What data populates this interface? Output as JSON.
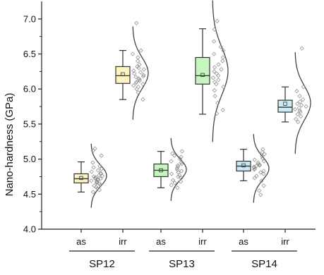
{
  "chart_data": {
    "type": "box",
    "title": "",
    "xlabel": "",
    "ylabel": "Nano-hardness (GPa)",
    "ylim": [
      4.0,
      7.25
    ],
    "yticks": [
      "4.0",
      "4.5",
      "5.0",
      "5.5",
      "6.0",
      "6.5",
      "7.0"
    ],
    "grid": false,
    "legend": "none",
    "groups": [
      {
        "label": "SP12",
        "conditions": [
          "as",
          "irr"
        ]
      },
      {
        "label": "SP13",
        "conditions": [
          "as",
          "irr"
        ]
      },
      {
        "label": "SP14",
        "conditions": [
          "as",
          "irr"
        ]
      }
    ],
    "series": [
      {
        "group": "SP12",
        "condition": "as",
        "color": "#fdf4c0",
        "whisker_low": 4.53,
        "q1": 4.66,
        "median": 4.72,
        "q3": 4.79,
        "whisker_high": 4.96,
        "mean": 4.73,
        "points": [
          4.53,
          4.56,
          4.58,
          4.6,
          4.62,
          4.63,
          4.65,
          4.66,
          4.67,
          4.68,
          4.69,
          4.7,
          4.71,
          4.72,
          4.72,
          4.73,
          4.74,
          4.75,
          4.76,
          4.77,
          4.79,
          4.8,
          4.82,
          4.84,
          4.86,
          4.88,
          4.9,
          4.95,
          5.05,
          5.12,
          5.15
        ]
      },
      {
        "group": "SP12",
        "condition": "irr",
        "color": "#fdf4c0",
        "whisker_low": 5.85,
        "q1": 6.08,
        "median": 6.19,
        "q3": 6.32,
        "whisker_high": 6.55,
        "mean": 6.21,
        "points": [
          5.85,
          5.95,
          6.0,
          6.03,
          6.05,
          6.07,
          6.09,
          6.1,
          6.12,
          6.14,
          6.15,
          6.17,
          6.18,
          6.2,
          6.22,
          6.24,
          6.26,
          6.28,
          6.3,
          6.32,
          6.35,
          6.4,
          6.45,
          6.5,
          6.55,
          6.94
        ]
      },
      {
        "group": "SP13",
        "condition": "as",
        "color": "#c6f5c0",
        "whisker_low": 4.59,
        "q1": 4.75,
        "median": 4.84,
        "q3": 4.93,
        "whisker_high": 5.11,
        "mean": 4.84,
        "points": [
          4.59,
          4.63,
          4.66,
          4.68,
          4.7,
          4.73,
          4.75,
          4.77,
          4.79,
          4.81,
          4.83,
          4.85,
          4.87,
          4.89,
          4.91,
          4.93,
          4.95,
          4.97,
          5.0,
          5.03,
          5.05,
          5.08,
          5.11
        ]
      },
      {
        "group": "SP13",
        "condition": "irr",
        "color": "#c6f5c0",
        "whisker_low": 5.64,
        "q1": 6.07,
        "median": 6.19,
        "q3": 6.45,
        "whisker_high": 6.86,
        "mean": 6.2,
        "points": [
          5.65,
          5.7,
          5.8,
          5.9,
          5.98,
          6.03,
          6.07,
          6.1,
          6.13,
          6.16,
          6.19,
          6.22,
          6.25,
          6.28,
          6.31,
          6.35,
          6.4,
          6.45,
          6.5,
          6.55,
          6.6,
          6.68,
          6.85,
          6.97
        ]
      },
      {
        "group": "SP14",
        "condition": "as",
        "color": "#c8ebf6",
        "whisker_low": 4.69,
        "q1": 4.83,
        "median": 4.9,
        "q3": 4.97,
        "whisker_high": 5.14,
        "mean": 4.91,
        "points": [
          4.49,
          4.55,
          4.62,
          4.69,
          4.73,
          4.76,
          4.79,
          4.81,
          4.83,
          4.85,
          4.86,
          4.88,
          4.89,
          4.9,
          4.91,
          4.92,
          4.93,
          4.95,
          4.97,
          4.99,
          5.01,
          5.04,
          5.07,
          5.1,
          5.14
        ]
      },
      {
        "group": "SP14",
        "condition": "irr",
        "color": "#c8ebf6",
        "whisker_low": 5.53,
        "q1": 5.67,
        "median": 5.74,
        "q3": 5.84,
        "whisker_high": 6.03,
        "mean": 5.79,
        "points": [
          5.53,
          5.57,
          5.61,
          5.64,
          5.67,
          5.69,
          5.71,
          5.73,
          5.75,
          5.77,
          5.79,
          5.82,
          5.85,
          5.9,
          5.97,
          6.03,
          6.58
        ]
      }
    ]
  }
}
